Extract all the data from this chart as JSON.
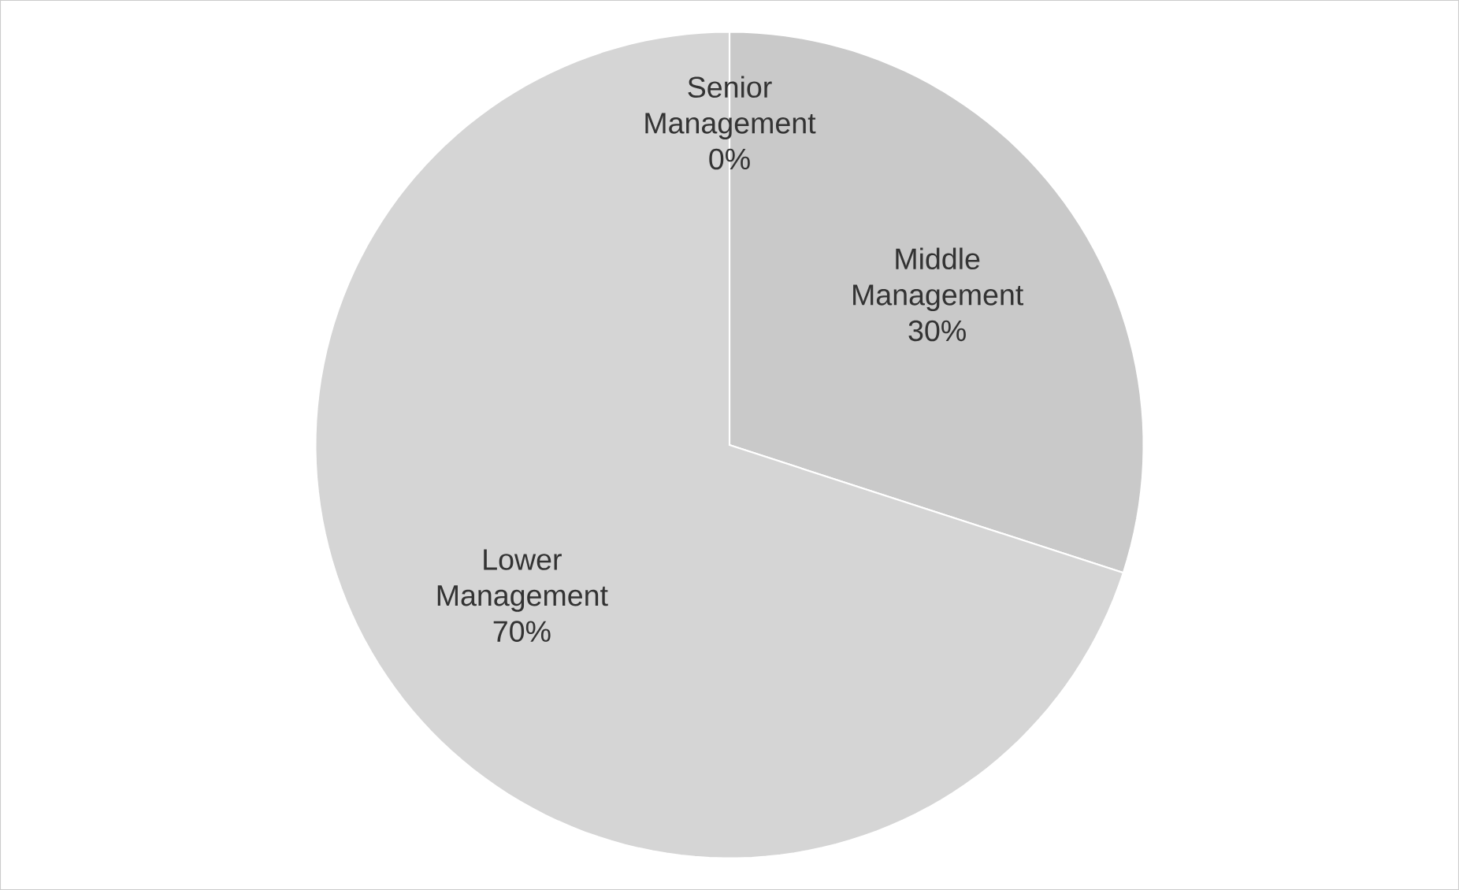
{
  "chart_data": {
    "type": "pie",
    "categories": [
      "Senior Management",
      "Middle Management",
      "Lower Management"
    ],
    "values": [
      0,
      30,
      70
    ],
    "colors": [
      "#bdbdbd",
      "#c9c9c9",
      "#d5d5d5"
    ],
    "value_labels": [
      "0%",
      "30%",
      "70%"
    ]
  }
}
